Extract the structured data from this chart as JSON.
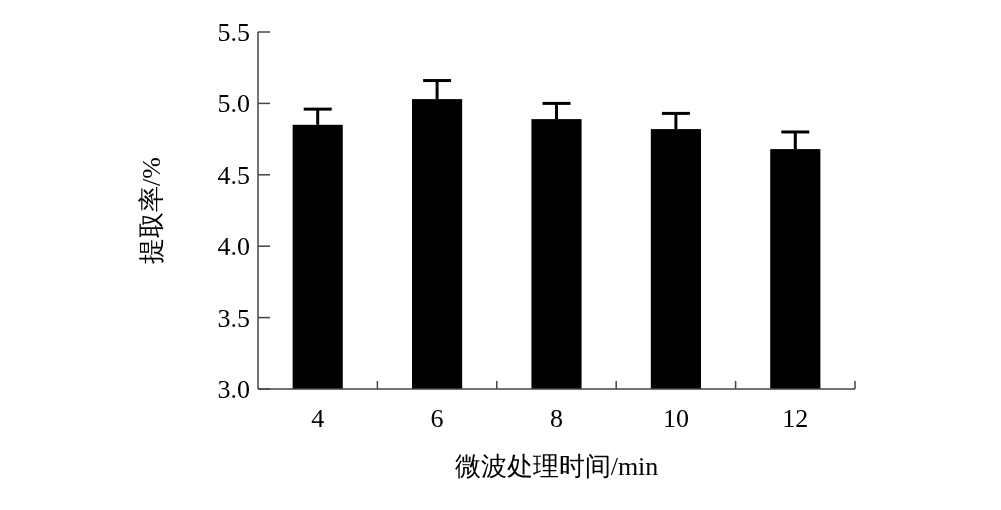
{
  "chart_data": {
    "type": "bar",
    "xlabel": "微波处理时间/min",
    "ylabel": "提取率/%",
    "categories": [
      "4",
      "6",
      "8",
      "10",
      "12"
    ],
    "values": [
      4.85,
      5.03,
      4.89,
      4.82,
      4.68
    ],
    "errors": [
      [
        4.85,
        4.96
      ],
      [
        5.03,
        5.16
      ],
      [
        4.89,
        5.0
      ],
      [
        4.82,
        4.93
      ],
      [
        4.68,
        4.8
      ]
    ],
    "color": "#000000",
    "ylim": [
      3.0,
      5.5
    ],
    "yticks": [
      {
        "value": 3.0,
        "label": "3.0"
      },
      {
        "value": 3.5,
        "label": "3.5"
      },
      {
        "value": 4.0,
        "label": "4.0"
      },
      {
        "value": 4.5,
        "label": "4.5"
      },
      {
        "value": 5.0,
        "label": "5.0"
      },
      {
        "value": 5.5,
        "label": "5.5"
      }
    ],
    "grid": false
  }
}
